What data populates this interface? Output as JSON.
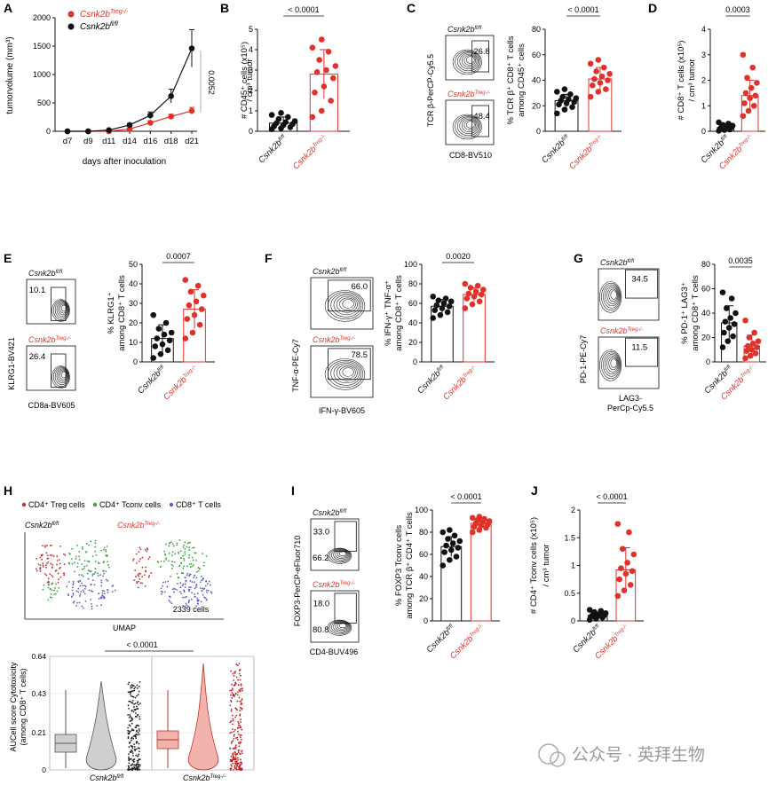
{
  "colors": {
    "red": "#e0312b",
    "black": "#111111",
    "pink": "#f2b3ad",
    "grey": "#cfcfcf",
    "treg": "#c0302c",
    "tconv": "#3ba33b",
    "cd8": "#5b5fc7",
    "gridline": "#dddddd"
  },
  "labels": {
    "ko": "Csnk2b",
    "ko_sup": "Treg-/-",
    "wt": "Csnk2b",
    "wt_sup": "fl/fl"
  },
  "panels": {
    "A": {
      "letter": "A",
      "ylabel": "tumorvolume (mm³)",
      "xlabel": "days after inoculation",
      "pval": "0.0052",
      "legend": [
        "Csnk2b Treg-/-",
        "Csnk2b fl/fl"
      ]
    },
    "B": {
      "letter": "B",
      "ylabel1": "# CD45⁺ cells (x10⁵)",
      "ylabel2": "/ cm³ tumor",
      "pval": "< 0.0001"
    },
    "C": {
      "letter": "C",
      "flow_y": "TCR β-PerCP-Cy5.5",
      "flow_x": "CD8-BV510",
      "gate_wt": "26.8",
      "gate_ko": "48.4",
      "ylabel1": "% TCR β⁺ CD8⁺ T cells",
      "ylabel2": "among CD45⁺ cells",
      "pval": "< 0.0001"
    },
    "D": {
      "letter": "D",
      "ylabel1": "# CD8⁺ T cells (x10⁵)",
      "ylabel2": "/ cm³ tumor",
      "pval": "0.0003"
    },
    "E": {
      "letter": "E",
      "flow_y": "KLRG1-BV421",
      "flow_x": "CD8a-BV605",
      "gate_wt": "10.1",
      "gate_ko": "26.4",
      "ylabel1": "% KLRG1⁺",
      "ylabel2": "among CD8⁺ T cells",
      "pval": "0.0007"
    },
    "F": {
      "letter": "F",
      "flow_y": "TNF-α-PE-Cy7",
      "flow_x": "IFN-γ-BV605",
      "gate_wt": "66.0",
      "gate_ko": "78.5",
      "ylabel1": "% IFN-γ⁺ TNF-α⁺",
      "ylabel2": "among CD8⁺ T cells",
      "pval": "0.0020"
    },
    "G": {
      "letter": "G",
      "flow_y": "PD-1-PE-Cy7",
      "flow_x1": "LAG3-",
      "flow_x2": "PerCp-Cy5.5",
      "gate_wt": "34.5",
      "gate_ko": "11.5",
      "ylabel1": "% PD-1⁺ LAG3⁺",
      "ylabel2": "among CD8⁺ T cells",
      "pval": "0.0035"
    },
    "H": {
      "letter": "H",
      "legend": [
        "CD4⁺ Treg cells",
        "CD4⁺ Tconv cells",
        "CD8⁺ T cells"
      ],
      "umap": "UMAP",
      "cells": "2339 cells",
      "ylabel1": "AUCell score Cytotoxicity",
      "ylabel2": "(among CD8⁺ T cells)",
      "pval": "< 0.0001"
    },
    "I": {
      "letter": "I",
      "flow_y": "FOXP3-PerCP-eFluor710",
      "flow_x": "CD4-BUV496",
      "gate_wt_top": "33.0",
      "gate_wt_bot": "66.2",
      "gate_ko_top": "18.0",
      "gate_ko_bot": "80.8",
      "ylabel1": "% FOXP3 Tconv cells",
      "ylabel2": "among TCR β⁺ CD4⁺ T cells",
      "pval": "< 0.0001"
    },
    "J": {
      "letter": "J",
      "ylabel1": "# CD4⁺ Tconv cells (x10⁵)",
      "ylabel2": "/ cm³ tumor",
      "pval": "< 0.0001"
    }
  },
  "watermark": "公众号 · 英拜生物",
  "chart_data": [
    {
      "panel": "A",
      "type": "line",
      "x": [
        "d7",
        "d9",
        "d11",
        "d14",
        "d16",
        "d18",
        "d21"
      ],
      "ylim": [
        0,
        2000
      ],
      "yticks": [
        0,
        500,
        1000,
        1500,
        2000
      ],
      "series": [
        {
          "name": "Csnk2b Treg-/-",
          "values": [
            0,
            0,
            0,
            40,
            150,
            260,
            360
          ],
          "err": [
            0,
            0,
            0,
            15,
            30,
            40,
            60
          ]
        },
        {
          "name": "Csnk2b fl/fl",
          "values": [
            0,
            0,
            20,
            110,
            280,
            620,
            1460
          ],
          "err": [
            0,
            0,
            10,
            30,
            60,
            120,
            330
          ]
        }
      ]
    },
    {
      "panel": "B",
      "type": "scatter",
      "ylim": [
        0,
        5
      ],
      "yticks": [
        0,
        1,
        2,
        3,
        4,
        5
      ],
      "groups": [
        {
          "name": "wt",
          "mean": 0.4,
          "sd": 0.3,
          "points": [
            0.1,
            0.15,
            0.2,
            0.25,
            0.3,
            0.35,
            0.4,
            0.45,
            0.5,
            0.6,
            0.7,
            0.8,
            0.9
          ]
        },
        {
          "name": "ko",
          "mean": 2.8,
          "sd": 1.2,
          "points": [
            0.7,
            1.0,
            1.5,
            1.9,
            2.2,
            2.6,
            2.9,
            3.0,
            3.2,
            3.5,
            3.9,
            4.1,
            4.5
          ]
        }
      ]
    },
    {
      "panel": "C",
      "type": "scatter",
      "ylim": [
        0,
        80
      ],
      "yticks": [
        0,
        20,
        40,
        60,
        80
      ],
      "groups": [
        {
          "name": "wt",
          "mean": 24,
          "sd": 5,
          "points": [
            14,
            17,
            19,
            21,
            22,
            23,
            24,
            25,
            26,
            27,
            29,
            31,
            33
          ]
        },
        {
          "name": "ko",
          "mean": 41,
          "sd": 9,
          "points": [
            27,
            31,
            33,
            36,
            38,
            40,
            41,
            43,
            45,
            47,
            50,
            53,
            56
          ]
        }
      ]
    },
    {
      "panel": "D",
      "type": "scatter",
      "ylim": [
        0,
        4
      ],
      "yticks": [
        0,
        1,
        2,
        3,
        4
      ],
      "groups": [
        {
          "name": "wt",
          "mean": 0.15,
          "sd": 0.1,
          "points": [
            0.02,
            0.05,
            0.07,
            0.1,
            0.12,
            0.15,
            0.17,
            0.2,
            0.22,
            0.25,
            0.3,
            0.35
          ]
        },
        {
          "name": "ko",
          "mean": 1.4,
          "sd": 0.6,
          "points": [
            0.6,
            0.8,
            1.0,
            1.1,
            1.3,
            1.4,
            1.5,
            1.7,
            1.9,
            2.1,
            2.5,
            3.0
          ]
        }
      ]
    },
    {
      "panel": "E",
      "type": "scatter",
      "ylim": [
        0,
        50
      ],
      "yticks": [
        0,
        10,
        20,
        30,
        40,
        50
      ],
      "groups": [
        {
          "name": "wt",
          "mean": 12,
          "sd": 7,
          "points": [
            2,
            4,
            6,
            8,
            9,
            11,
            12,
            14,
            15,
            17,
            20,
            24
          ]
        },
        {
          "name": "ko",
          "mean": 27,
          "sd": 10,
          "points": [
            12,
            15,
            19,
            22,
            24,
            27,
            29,
            31,
            34,
            36,
            39,
            42
          ]
        }
      ]
    },
    {
      "panel": "F",
      "type": "scatter",
      "ylim": [
        0,
        100
      ],
      "yticks": [
        0,
        20,
        40,
        60,
        80,
        100
      ],
      "groups": [
        {
          "name": "wt",
          "mean": 57,
          "sd": 7,
          "points": [
            45,
            48,
            51,
            53,
            55,
            57,
            58,
            60,
            62,
            63,
            65,
            67
          ]
        },
        {
          "name": "ko",
          "mean": 69,
          "sd": 7,
          "points": [
            55,
            59,
            62,
            65,
            67,
            69,
            70,
            72,
            74,
            76,
            78,
            80
          ]
        }
      ]
    },
    {
      "panel": "G",
      "type": "scatter",
      "ylim": [
        0,
        80
      ],
      "yticks": [
        0,
        20,
        40,
        60,
        80
      ],
      "groups": [
        {
          "name": "wt",
          "mean": 32,
          "sd": 14,
          "points": [
            12,
            17,
            21,
            24,
            28,
            31,
            33,
            36,
            40,
            44,
            52,
            57
          ]
        },
        {
          "name": "ko",
          "mean": 13,
          "sd": 9,
          "points": [
            3,
            5,
            7,
            9,
            10,
            12,
            13,
            15,
            17,
            20,
            24,
            34
          ]
        }
      ]
    },
    {
      "panel": "I",
      "type": "scatter",
      "ylim": [
        0,
        100
      ],
      "yticks": [
        0,
        20,
        40,
        60,
        80,
        100
      ],
      "groups": [
        {
          "name": "wt",
          "mean": 67,
          "sd": 9,
          "points": [
            50,
            55,
            58,
            62,
            64,
            66,
            68,
            70,
            72,
            74,
            77,
            80,
            82
          ]
        },
        {
          "name": "ko",
          "mean": 88,
          "sd": 5,
          "points": [
            80,
            82,
            84,
            85,
            86,
            87,
            88,
            89,
            90,
            91,
            92,
            93,
            94
          ]
        }
      ]
    },
    {
      "panel": "J",
      "type": "scatter",
      "ylim": [
        0,
        2
      ],
      "yticks": [
        0,
        0.5,
        1.0,
        1.5,
        2.0
      ],
      "groups": [
        {
          "name": "wt",
          "mean": 0.1,
          "sd": 0.05,
          "points": [
            0.02,
            0.04,
            0.06,
            0.08,
            0.09,
            0.1,
            0.11,
            0.12,
            0.14,
            0.16,
            0.18,
            0.2
          ]
        },
        {
          "name": "ko",
          "mean": 0.92,
          "sd": 0.4,
          "points": [
            0.45,
            0.55,
            0.65,
            0.75,
            0.85,
            0.9,
            0.95,
            1.05,
            1.2,
            1.3,
            1.6,
            1.75
          ]
        }
      ]
    },
    {
      "panel": "H",
      "type": "violin",
      "ylim": [
        0,
        0.64
      ],
      "yticks": [
        0,
        0.21,
        0.43,
        0.64
      ]
    }
  ]
}
